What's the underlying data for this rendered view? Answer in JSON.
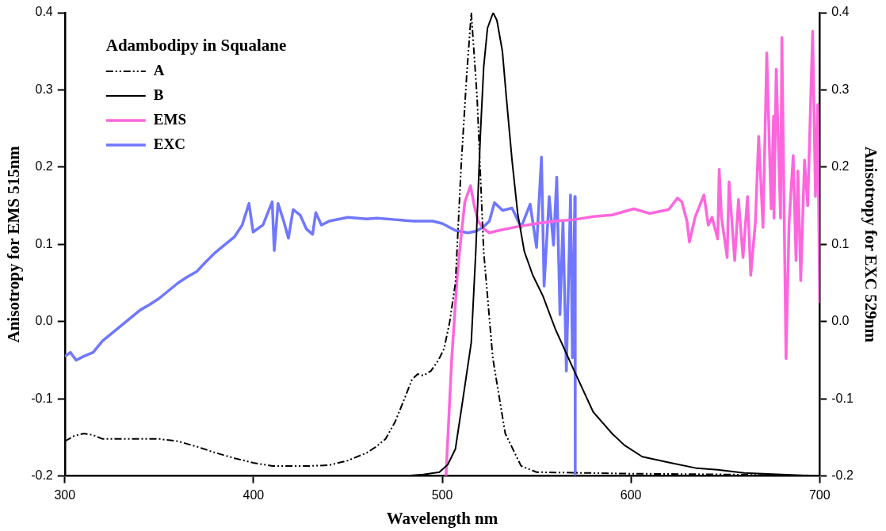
{
  "chart_data": {
    "type": "line",
    "xlabel": "Wavelength nm",
    "ylabel": "Anisotropy for EMS 515nm",
    "y2label": "Anisotropy for EXC 529nm",
    "legend_title": "Adambodipy in Squalane",
    "xlim": [
      300,
      700
    ],
    "xticks": [
      300,
      400,
      500,
      600,
      700
    ],
    "ylim": [
      -0.2,
      0.4
    ],
    "yticks": [
      -0.2,
      -0.1,
      {
        "value": 0,
        "label": "0.0"
      },
      0.1,
      0.2,
      0.3,
      0.4
    ],
    "y2lim": [
      -0.2,
      0.4
    ],
    "y2ticks": [
      -0.2,
      -0.1,
      {
        "value": 0,
        "label": "0.0"
      },
      0.1,
      0.2,
      0.3,
      0.4
    ],
    "grid": false,
    "legend": "top left",
    "marker": "none",
    "series": [
      {
        "name": "A",
        "color": "#000000",
        "line_style": "dashed",
        "x": [
          300,
          305,
          310,
          315,
          320,
          330,
          340,
          350,
          360,
          370,
          380,
          390,
          400,
          410,
          420,
          430,
          440,
          450,
          460,
          465,
          470,
          475,
          480,
          484,
          487,
          490,
          494,
          498,
          501,
          504,
          507,
          510,
          513,
          515.4,
          518.5,
          522,
          526.8,
          533.4,
          541.8,
          550,
          600,
          650,
          700
        ],
        "values": [
          -0.155,
          -0.148,
          -0.145,
          -0.147,
          -0.152,
          -0.152,
          -0.152,
          -0.152,
          -0.155,
          -0.162,
          -0.17,
          -0.177,
          -0.183,
          -0.187,
          -0.187,
          -0.187,
          -0.186,
          -0.18,
          -0.17,
          -0.162,
          -0.152,
          -0.13,
          -0.1,
          -0.075,
          -0.068,
          -0.07,
          -0.064,
          -0.05,
          -0.035,
          0.0,
          0.05,
          0.2,
          0.32,
          0.4,
          0.29,
          0.09,
          -0.047,
          -0.145,
          -0.187,
          -0.195,
          -0.197,
          -0.198,
          -0.2
        ]
      },
      {
        "name": "B",
        "color": "#000000",
        "line_style": "solid",
        "x": [
          300,
          400,
          480,
          490,
          498.5,
          503,
          507,
          511,
          515.4,
          517.8,
          520.2,
          522,
          524,
          527,
          529,
          531.9,
          534,
          537,
          540,
          543.5,
          548,
          553.4,
          560,
          570,
          580,
          590,
          596.5,
          606,
          621,
          635,
          646,
          660,
          680,
          700
        ],
        "values": [
          -0.2,
          -0.2,
          -0.2,
          -0.198,
          -0.195,
          -0.185,
          -0.165,
          -0.1,
          -0.027,
          0.091,
          0.24,
          0.33,
          0.38,
          0.4,
          0.39,
          0.35,
          0.29,
          0.209,
          0.14,
          0.091,
          0.06,
          0.033,
          -0.01,
          -0.064,
          -0.117,
          -0.145,
          -0.16,
          -0.175,
          -0.183,
          -0.19,
          -0.192,
          -0.196,
          -0.198,
          -0.2
        ]
      },
      {
        "name": "EMS",
        "color": "#ff66dd",
        "line_style": "solid",
        "x": [
          502,
          505,
          508,
          510,
          512,
          515,
          517,
          519,
          522,
          525,
          530,
          540,
          550,
          560,
          570,
          580,
          590,
          601.5,
          610,
          620,
          624.7,
          627,
          629.7,
          631,
          634,
          638.7,
          641,
          643,
          646,
          646.8,
          648,
          651,
          652,
          655,
          657,
          659.4,
          661.8,
          663.5,
          666,
          667.7,
          670,
          672,
          674.3,
          675.6,
          675.8,
          677,
          679.3,
          680,
          682.2,
          683.8,
          686,
          687.5,
          688.5,
          690,
          692,
          693.7,
          696.3,
          697.8,
          699,
          700
        ],
        "values": [
          -0.2,
          -0.05,
          0.06,
          0.11,
          0.155,
          0.176,
          0.15,
          0.13,
          0.12,
          0.115,
          0.118,
          0.123,
          0.127,
          0.13,
          0.132,
          0.136,
          0.138,
          0.146,
          0.14,
          0.145,
          0.16,
          0.155,
          0.13,
          0.103,
          0.135,
          0.164,
          0.125,
          0.135,
          0.107,
          0.197,
          0.135,
          0.083,
          0.181,
          0.079,
          0.158,
          0.083,
          0.162,
          0.06,
          0.13,
          0.24,
          0.122,
          0.348,
          0.146,
          0.266,
          0.134,
          0.327,
          0.134,
          0.368,
          -0.048,
          0.127,
          0.215,
          0.079,
          0.195,
          0.053,
          0.209,
          0.15,
          0.376,
          0.162,
          0.281,
          0.024
        ]
      },
      {
        "name": "EXC",
        "color": "#7077ff",
        "line_style": "solid",
        "x": [
          300,
          303,
          306,
          310,
          315,
          320,
          325,
          330,
          335,
          340,
          345,
          350,
          355,
          360,
          365,
          370,
          375,
          380,
          385,
          390,
          394,
          397.6,
          399.8,
          405,
          409.9,
          411,
          413,
          416,
          418.5,
          421,
          424.7,
          428,
          431.3,
          433,
          436,
          440,
          450,
          460,
          465.7,
          475,
          485,
          495,
          500,
          507,
          513.6,
          518,
          522,
          525,
          527.7,
          532,
          537,
          541.8,
          546.6,
          550,
          552.6,
          554,
          556.7,
          559,
          560.7,
          562.4,
          564,
          565.8,
          568,
          569,
          570.3,
          570.5
        ],
        "values": [
          -0.045,
          -0.04,
          -0.05,
          -0.045,
          -0.04,
          -0.025,
          -0.015,
          -0.005,
          0.005,
          0.015,
          0.022,
          0.03,
          0.04,
          0.05,
          0.058,
          0.065,
          0.078,
          0.09,
          0.1,
          0.11,
          0.125,
          0.153,
          0.116,
          0.125,
          0.155,
          0.092,
          0.153,
          0.13,
          0.108,
          0.145,
          0.138,
          0.12,
          0.113,
          0.141,
          0.125,
          0.13,
          0.135,
          0.133,
          0.134,
          0.132,
          0.13,
          0.13,
          0.127,
          0.118,
          0.115,
          0.117,
          0.123,
          0.13,
          0.154,
          0.144,
          0.147,
          0.122,
          0.152,
          0.096,
          0.213,
          0.046,
          0.162,
          0.099,
          0.187,
          0.009,
          0.13,
          -0.064,
          0.164,
          -0.047,
          0.162,
          -0.198
        ]
      }
    ]
  }
}
